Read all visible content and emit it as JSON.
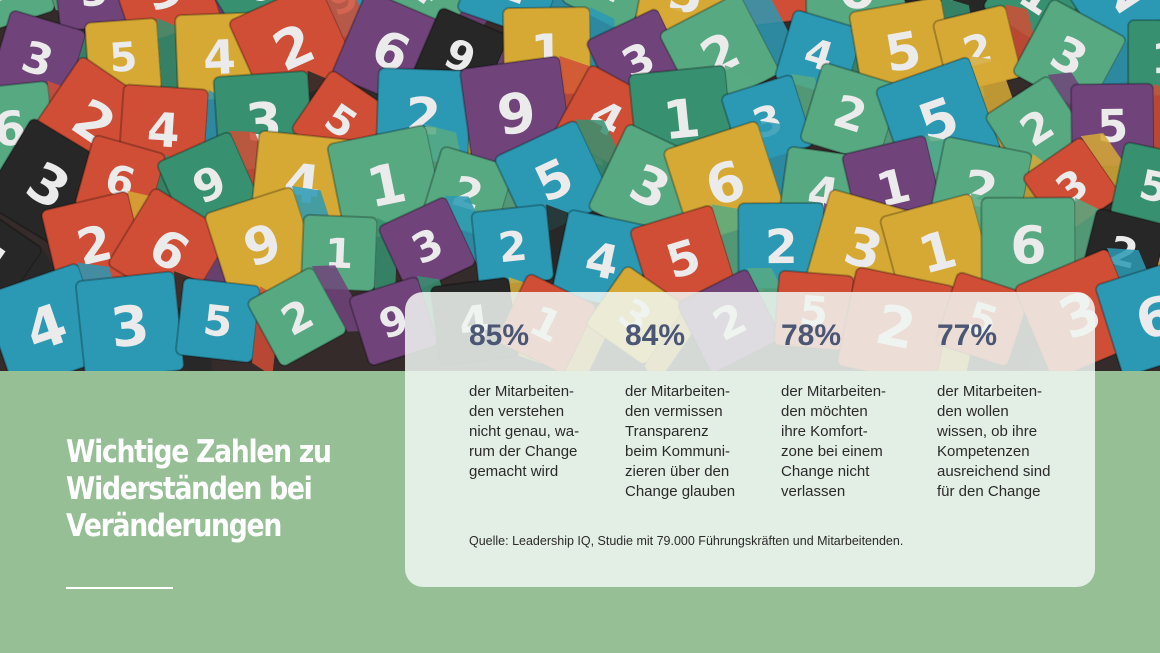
{
  "headline": {
    "lines": [
      "Wichtige Zahlen zu",
      "Widerständen bei",
      "Veränderungen"
    ]
  },
  "stats": [
    {
      "value": "85%",
      "text": "der Mitarbeiten-\nden verstehen\nnicht genau, wa-\nrum der Change\ngemacht wird"
    },
    {
      "value": "84%",
      "text": "der Mitarbeiten-\nden vermissen\nTransparenz\nbeim Kommuni-\nzieren über den\nChange glauben"
    },
    {
      "value": "78%",
      "text": "der Mitarbeiten-\nden möchten\nihre Komfort-\nzone bei einem\nChange nicht\nverlassen"
    },
    {
      "value": "77%",
      "text": "der Mitarbeiten-\nden wollen\nwissen, ob ihre\nKompetenzen\nausreichend sind\nfür den Change"
    }
  ],
  "source": "Quelle: Leadership IQ, Studie mit 79.000 Führungskräften und Mitarbeitenden.",
  "photo": {
    "subject": "number-cubes",
    "digits": [
      "2",
      "5",
      "3",
      "6",
      "9",
      "4",
      "1",
      "2",
      "5",
      "3",
      "6",
      "4",
      "1",
      "2",
      "3",
      "5",
      "4",
      "2",
      "6",
      "9",
      "1",
      "3",
      "2",
      "4",
      "5",
      "2",
      "3",
      "1",
      "6",
      "2",
      "4",
      "3",
      "5",
      "2",
      "9",
      "4",
      "1",
      "3",
      "2",
      "5"
    ],
    "palette": [
      "#e9b83a",
      "#7a4a86",
      "#2fa7c4",
      "#5fb88e",
      "#e2553b",
      "#2b2b2b",
      "#3c9e7a"
    ]
  },
  "colors": {
    "background": "#96bf96",
    "stat_value": "#4b5675",
    "panel": "#f0f6f1"
  }
}
